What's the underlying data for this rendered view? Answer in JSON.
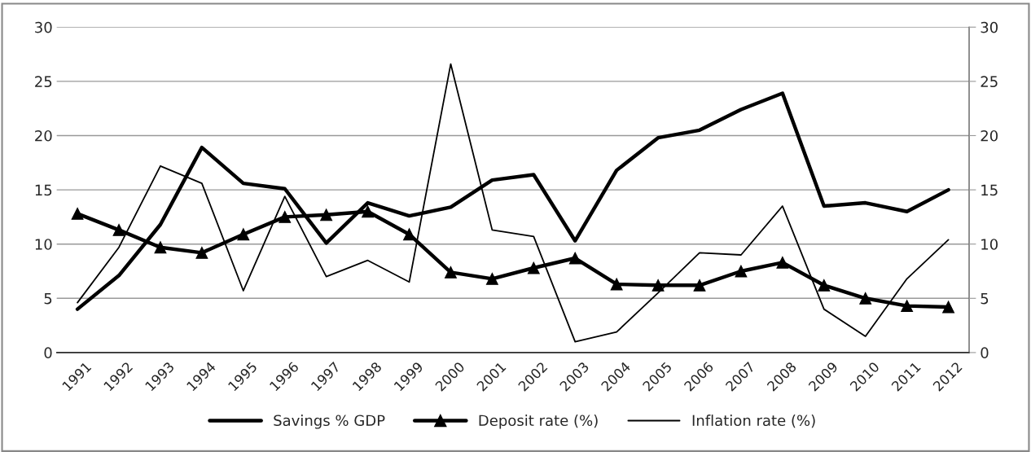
{
  "chart_data": {
    "type": "line",
    "categories": [
      "1991",
      "1992",
      "1993",
      "1994",
      "1995",
      "1996",
      "1997",
      "1998",
      "1999",
      "2000",
      "2001",
      "2002",
      "2003",
      "2004",
      "2005",
      "2006",
      "2007",
      "2008",
      "2009",
      "2010",
      "2011",
      "2012"
    ],
    "series": [
      {
        "name": "Savings % GDP",
        "color": "#000000",
        "marker": "none",
        "values": [
          4.0,
          7.1,
          11.8,
          18.9,
          15.6,
          15.1,
          10.1,
          13.8,
          12.6,
          13.4,
          15.9,
          16.4,
          10.3,
          16.8,
          19.8,
          20.5,
          22.4,
          23.9,
          13.5,
          13.8,
          13.0,
          15.0
        ]
      },
      {
        "name": "Deposit rate (%)",
        "color": "#000000",
        "marker": "triangle",
        "values": [
          12.8,
          11.3,
          9.7,
          9.2,
          10.9,
          12.5,
          12.7,
          13.0,
          10.9,
          7.4,
          6.8,
          7.8,
          8.7,
          6.3,
          6.2,
          6.2,
          7.5,
          8.3,
          6.2,
          5.0,
          4.3,
          4.2
        ]
      },
      {
        "name": "Inflation rate (%)",
        "color": "#000000",
        "marker": "none",
        "values": [
          4.6,
          9.7,
          17.2,
          15.6,
          5.7,
          14.4,
          7.0,
          8.5,
          6.5,
          26.6,
          11.3,
          10.7,
          1.0,
          1.9,
          5.5,
          9.2,
          9.0,
          13.5,
          4.0,
          1.5,
          6.8,
          10.4
        ]
      }
    ],
    "ylim": [
      0,
      30
    ],
    "yticks": [
      0,
      5,
      10,
      15,
      20,
      25,
      30
    ],
    "y2lim": [
      0,
      30
    ],
    "y2ticks": [
      0,
      5,
      10,
      15,
      20,
      25,
      30
    ],
    "grid": "y",
    "legend": "bottom",
    "line_style": "solid"
  }
}
